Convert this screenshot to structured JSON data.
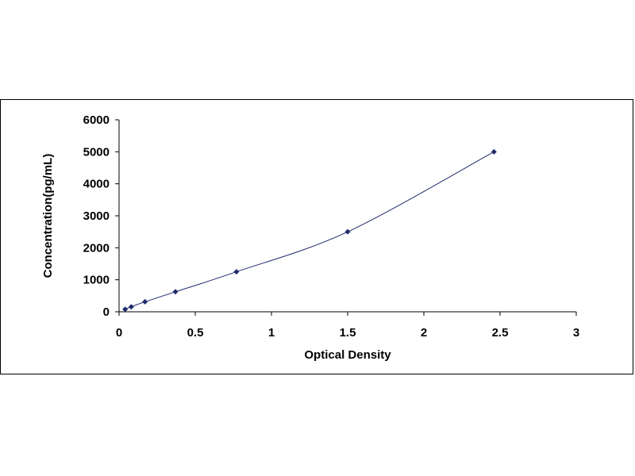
{
  "chart_data": {
    "type": "scatter",
    "title": "",
    "xlabel": "Optical Density",
    "ylabel": "Concentration(pg/mL)",
    "xlim": [
      0,
      3
    ],
    "ylim": [
      0,
      6000
    ],
    "x_ticks": [
      0,
      0.5,
      1,
      1.5,
      2,
      2.5,
      3
    ],
    "x_tick_labels": [
      "0",
      "0.5",
      "1",
      "1.5",
      "2",
      "2.5",
      "3"
    ],
    "y_ticks": [
      0,
      1000,
      2000,
      3000,
      4000,
      5000,
      6000
    ],
    "y_tick_labels": [
      "0",
      "1000",
      "2000",
      "3000",
      "4000",
      "5000",
      "6000"
    ],
    "grid": false,
    "legend": "none",
    "trendline": "smooth curve through points",
    "series": [
      {
        "x": [
          0.04,
          0.08,
          0.17,
          0.37,
          0.77,
          1.5,
          2.46
        ],
        "y": [
          78,
          156,
          312,
          625,
          1250,
          2500,
          5000
        ]
      }
    ],
    "colors": {
      "marker": "#1f2a6b",
      "line": "#1f2a6b",
      "axis": "#000000"
    }
  }
}
